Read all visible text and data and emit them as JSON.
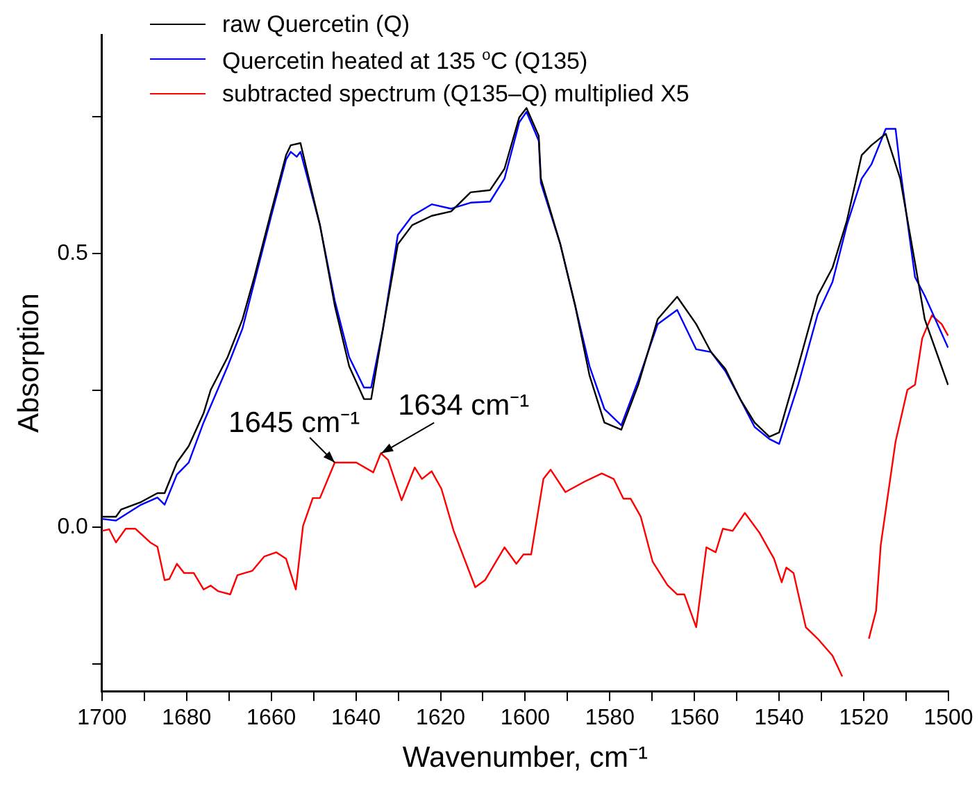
{
  "chart_data": {
    "type": "line",
    "xlabel": "Wavenumber, cm⁻¹",
    "ylabel": "Absorption",
    "xlim": [
      1700,
      1500
    ],
    "ylim": [
      -0.3,
      0.9
    ],
    "xticks": [
      1700,
      {
        "value": 1690,
        "label": null
      },
      1680,
      {
        "value": 1670,
        "label": null
      },
      1660,
      {
        "value": 1650,
        "label": null
      },
      1640,
      {
        "value": 1630,
        "label": null
      },
      1620,
      {
        "value": 1610,
        "label": null
      },
      1600,
      {
        "value": 1590,
        "label": null
      },
      1580,
      {
        "value": 1570,
        "label": null
      },
      1560,
      {
        "value": 1550,
        "label": null
      },
      1540,
      {
        "value": 1530,
        "label": null
      },
      1520,
      {
        "value": 1510,
        "label": null
      },
      1500
    ],
    "yticks": [
      {
        "value": -0.25,
        "label": null
      },
      {
        "value": 0,
        "label": "0.0"
      },
      {
        "value": 0.25,
        "label": null
      },
      0.5,
      {
        "value": 0.75,
        "label": null
      }
    ],
    "grid": false,
    "legend": "top left",
    "marker": "none",
    "line_style": "solid",
    "annotations": [
      {
        "text": "1645 cm⁻¹",
        "x": 1645,
        "y": 0.118
      },
      {
        "text": "1634 cm⁻¹",
        "x": 1634,
        "y": 0.135
      }
    ],
    "series": [
      {
        "name": "raw Quercetin (Q)",
        "color": "#000000",
        "x": [
          1700,
          1696.7,
          1695.5,
          1691,
          1686.9,
          1685.2,
          1682.3,
          1679.5,
          1676,
          1674.3,
          1670.3,
          1666.8,
          1664,
          1660,
          1656.5,
          1655.4,
          1653.1,
          1651.4,
          1648.5,
          1645,
          1641.6,
          1638.1,
          1636.4,
          1633.6,
          1630.1,
          1626.7,
          1622.1,
          1617.5,
          1612.9,
          1608.3,
          1604.9,
          1601.4,
          1599.7,
          1596.8,
          1596.3,
          1591.7,
          1588.2,
          1584.8,
          1581.3,
          1577.3,
          1573.3,
          1568.7,
          1564.1,
          1559.6,
          1556.1,
          1552.7,
          1549.2,
          1545.8,
          1542.3,
          1540,
          1535.5,
          1530.9,
          1527.4,
          1524,
          1520.5,
          1518.2,
          1514.8,
          1511.4,
          1507.9,
          1505.6,
          1500.1
        ],
        "values": [
          0.019,
          0.019,
          0.032,
          0.045,
          0.062,
          0.062,
          0.118,
          0.148,
          0.208,
          0.251,
          0.311,
          0.38,
          0.457,
          0.577,
          0.68,
          0.698,
          0.702,
          0.646,
          0.552,
          0.405,
          0.294,
          0.234,
          0.234,
          0.363,
          0.517,
          0.552,
          0.569,
          0.577,
          0.612,
          0.616,
          0.655,
          0.749,
          0.766,
          0.715,
          0.637,
          0.517,
          0.405,
          0.277,
          0.191,
          0.178,
          0.26,
          0.38,
          0.421,
          0.371,
          0.32,
          0.289,
          0.234,
          0.191,
          0.165,
          0.173,
          0.294,
          0.423,
          0.474,
          0.56,
          0.68,
          0.698,
          0.719,
          0.637,
          0.483,
          0.38,
          0.26
        ]
      },
      {
        "name": "Quercetin heated at 135 $^{o}$C (Q135)",
        "color": "#0000ff",
        "x": [
          1700,
          1696.7,
          1691,
          1686.9,
          1685.2,
          1682.3,
          1679.5,
          1676,
          1670.3,
          1666.8,
          1664,
          1660,
          1656.5,
          1655.4,
          1654,
          1653.1,
          1651.4,
          1648.5,
          1645,
          1641.6,
          1638.1,
          1636.4,
          1633.6,
          1630.1,
          1626.7,
          1622.1,
          1617.5,
          1612.9,
          1608.3,
          1604.9,
          1601.4,
          1599.7,
          1596.8,
          1596.3,
          1591.7,
          1588.2,
          1584.8,
          1581.3,
          1577.3,
          1573.3,
          1568.7,
          1564.1,
          1559.6,
          1556.1,
          1552.7,
          1549.2,
          1545.8,
          1542.3,
          1540,
          1535.5,
          1530.9,
          1527.4,
          1524,
          1520.5,
          1518.2,
          1514.8,
          1512.5,
          1511.4,
          1507.9,
          1505.6,
          1500.1
        ],
        "values": [
          0.015,
          0.012,
          0.04,
          0.054,
          0.041,
          0.096,
          0.118,
          0.191,
          0.294,
          0.363,
          0.448,
          0.569,
          0.672,
          0.686,
          0.677,
          0.686,
          0.637,
          0.552,
          0.414,
          0.311,
          0.255,
          0.255,
          0.363,
          0.534,
          0.569,
          0.59,
          0.582,
          0.593,
          0.595,
          0.637,
          0.74,
          0.759,
          0.706,
          0.629,
          0.517,
          0.405,
          0.294,
          0.216,
          0.186,
          0.268,
          0.371,
          0.397,
          0.325,
          0.32,
          0.285,
          0.234,
          0.183,
          0.161,
          0.152,
          0.26,
          0.389,
          0.448,
          0.552,
          0.637,
          0.663,
          0.728,
          0.728,
          0.655,
          0.457,
          0.423,
          0.328
        ]
      },
      {
        "name": "subtracted spectrum (Q135–Q) multiplied X5",
        "color": "#ff0000",
        "x": [
          1700,
          1698.3,
          1696.7,
          1694.4,
          1692.1,
          1688.6,
          1686.9,
          1685.2,
          1684.1,
          1682.3,
          1680.6,
          1678.3,
          1676,
          1674.3,
          1672.6,
          1669.7,
          1668,
          1664.5,
          1661.7,
          1658.8,
          1656.5,
          1654.2,
          1652.5,
          1650.2,
          1648.5,
          1645,
          1639.9,
          1635.9,
          1634.1,
          1632.4,
          1629.2,
          1626.1,
          1624.4,
          1622.1,
          1619.8,
          1616.9,
          1611.8,
          1609.5,
          1604.9,
          1602.1,
          1600.4,
          1598.6,
          1595.7,
          1594,
          1590.5,
          1586,
          1581.9,
          1579.1,
          1576.8,
          1575.1,
          1572.7,
          1569.9,
          1566.4,
          1564.1,
          1562.4,
          1559.6,
          1557.2,
          1555,
          1553.3,
          1551,
          1548.1,
          1544.6,
          1541.2,
          1539.4,
          1538.3,
          1536.6,
          1533.7,
          1530.9,
          1527.4,
          1525.1,
          1523.4,
          1521.1,
          1518.8,
          1517.1,
          1516,
          1512.5,
          1509.7,
          1507.9,
          1506.2,
          1503.9,
          1501.6,
          1500.1
        ],
        "values": [
          -0.007,
          -0.004,
          -0.028,
          -0.003,
          -0.003,
          -0.028,
          -0.036,
          -0.097,
          -0.095,
          -0.067,
          -0.084,
          -0.084,
          -0.114,
          -0.107,
          -0.117,
          -0.123,
          -0.088,
          -0.08,
          -0.054,
          -0.046,
          -0.058,
          -0.114,
          0.002,
          0.053,
          0.053,
          0.118,
          0.118,
          0.1,
          0.135,
          0.123,
          0.049,
          0.109,
          0.088,
          0.102,
          0.07,
          -0.007,
          -0.11,
          -0.097,
          -0.037,
          -0.067,
          -0.05,
          -0.05,
          0.088,
          0.105,
          0.064,
          0.083,
          0.098,
          0.088,
          0.052,
          0.052,
          0.019,
          -0.063,
          -0.106,
          -0.123,
          -0.123,
          -0.183,
          -0.037,
          -0.046,
          -0.003,
          -0.007,
          0.026,
          -0.011,
          -0.058,
          -0.101,
          -0.074,
          -0.084,
          -0.183,
          -0.204,
          -0.235,
          -0.273,
          null,
          null,
          -0.204,
          -0.153,
          -0.033,
          0.156,
          0.251,
          0.26,
          0.345,
          0.387,
          0.371,
          0.35
        ]
      }
    ]
  }
}
